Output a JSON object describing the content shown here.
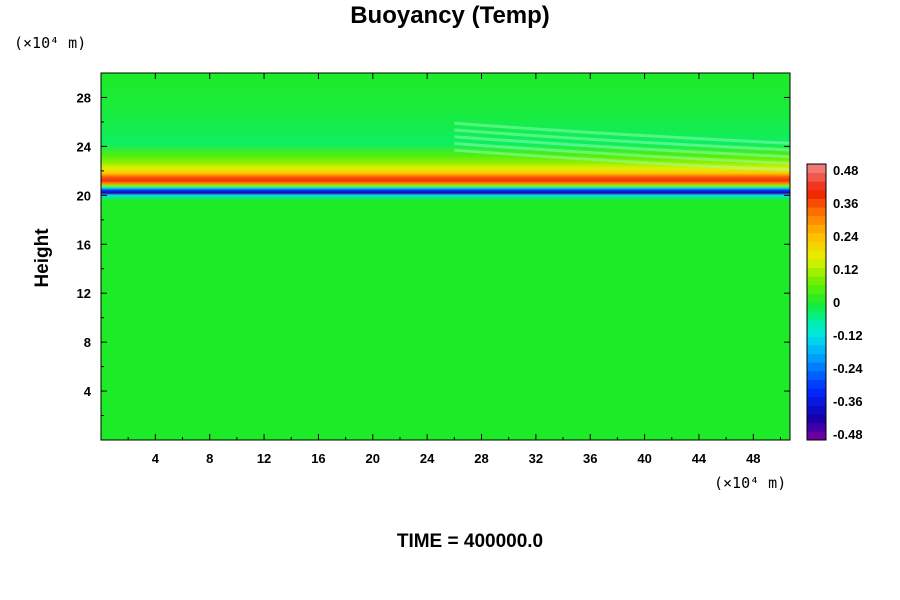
{
  "chart_data": {
    "type": "heatmap",
    "title": "Buoyancy (Temp)",
    "ylabel": "Height",
    "xlabel": "",
    "x_unit": "(×10⁴ m)",
    "y_unit": "(×10⁴ m)",
    "xlim": [
      0,
      50.7
    ],
    "ylim": [
      0,
      30
    ],
    "x_ticks": [
      4,
      8,
      12,
      16,
      20,
      24,
      28,
      32,
      36,
      40,
      44,
      48
    ],
    "y_ticks": [
      4,
      8,
      12,
      16,
      20,
      24,
      28
    ],
    "colorbar": {
      "min": -0.48,
      "max": 0.48,
      "step": 0.03,
      "tick_labels": [
        "0.48",
        "0.36",
        "0.24",
        "0.12",
        "0",
        "-0.12",
        "-0.24",
        "-0.36",
        "-0.48"
      ]
    },
    "vertical_profile": [
      {
        "height": 0,
        "value": 0.0
      },
      {
        "height": 19.6,
        "value": 0.0
      },
      {
        "height": 20.0,
        "value": -0.12
      },
      {
        "height": 20.2,
        "value": -0.42
      },
      {
        "height": 20.4,
        "value": -0.3
      },
      {
        "height": 20.6,
        "value": -0.1
      },
      {
        "height": 20.8,
        "value": 0.1
      },
      {
        "height": 21.0,
        "value": 0.3
      },
      {
        "height": 21.2,
        "value": 0.4
      },
      {
        "height": 21.5,
        "value": 0.33
      },
      {
        "height": 21.8,
        "value": 0.22
      },
      {
        "height": 22.2,
        "value": 0.15
      },
      {
        "height": 22.7,
        "value": 0.09
      },
      {
        "height": 23.3,
        "value": 0.04
      },
      {
        "height": 24.2,
        "value": -0.03
      },
      {
        "height": 25.5,
        "value": -0.02
      },
      {
        "height": 27.0,
        "value": -0.01
      },
      {
        "height": 30.0,
        "value": 0.0
      }
    ],
    "colors": {
      "background_field": "#22ee22",
      "cold_band": "#1a1ad8",
      "warm_band": "#ff3b00"
    }
  },
  "footer": {
    "time_label": "TIME = 400000.0"
  }
}
